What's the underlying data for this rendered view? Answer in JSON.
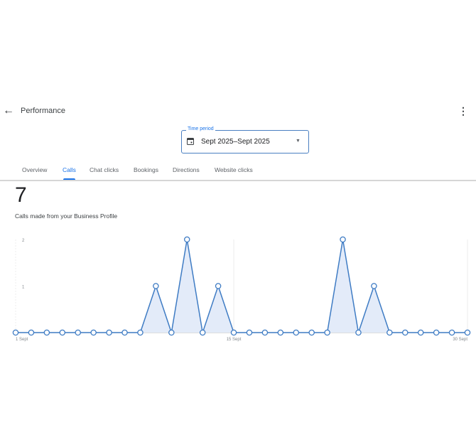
{
  "header": {
    "title": "Performance",
    "back_icon": "arrow-left-icon",
    "more_icon": "more-vert-icon"
  },
  "time_period": {
    "label": "Time period",
    "value": "Sept 2025–Sept 2025",
    "icon": "calendar-icon"
  },
  "tabs": [
    {
      "label": "Overview"
    },
    {
      "label": "Calls",
      "active": true
    },
    {
      "label": "Chat clicks"
    },
    {
      "label": "Bookings"
    },
    {
      "label": "Directions"
    },
    {
      "label": "Website clicks"
    }
  ],
  "metric": {
    "total": "7",
    "description": "Calls made from your Business Profile"
  },
  "colors": {
    "accent": "#1a73e8",
    "line": "#3f7cc4",
    "fill": "#e3ebf9"
  },
  "chart_data": {
    "type": "area",
    "x": [
      1,
      2,
      3,
      4,
      5,
      6,
      7,
      8,
      9,
      10,
      11,
      12,
      13,
      14,
      15,
      16,
      17,
      18,
      19,
      20,
      21,
      22,
      23,
      24,
      25,
      26,
      27,
      28,
      29,
      30
    ],
    "values": [
      0,
      0,
      0,
      0,
      0,
      0,
      0,
      0,
      0,
      1,
      0,
      2,
      0,
      1,
      0,
      0,
      0,
      0,
      0,
      0,
      0,
      2,
      0,
      1,
      0,
      0,
      0,
      0,
      0,
      0
    ],
    "ylim": [
      0,
      2
    ],
    "y_ticks": [
      "1",
      "2"
    ],
    "x_ticks": [
      {
        "day": 1,
        "label": "1 Sept"
      },
      {
        "day": 15,
        "label": "15 Sept"
      },
      {
        "day": 30,
        "label": "30 Sept"
      }
    ],
    "grid": "vertical at x ticks"
  }
}
